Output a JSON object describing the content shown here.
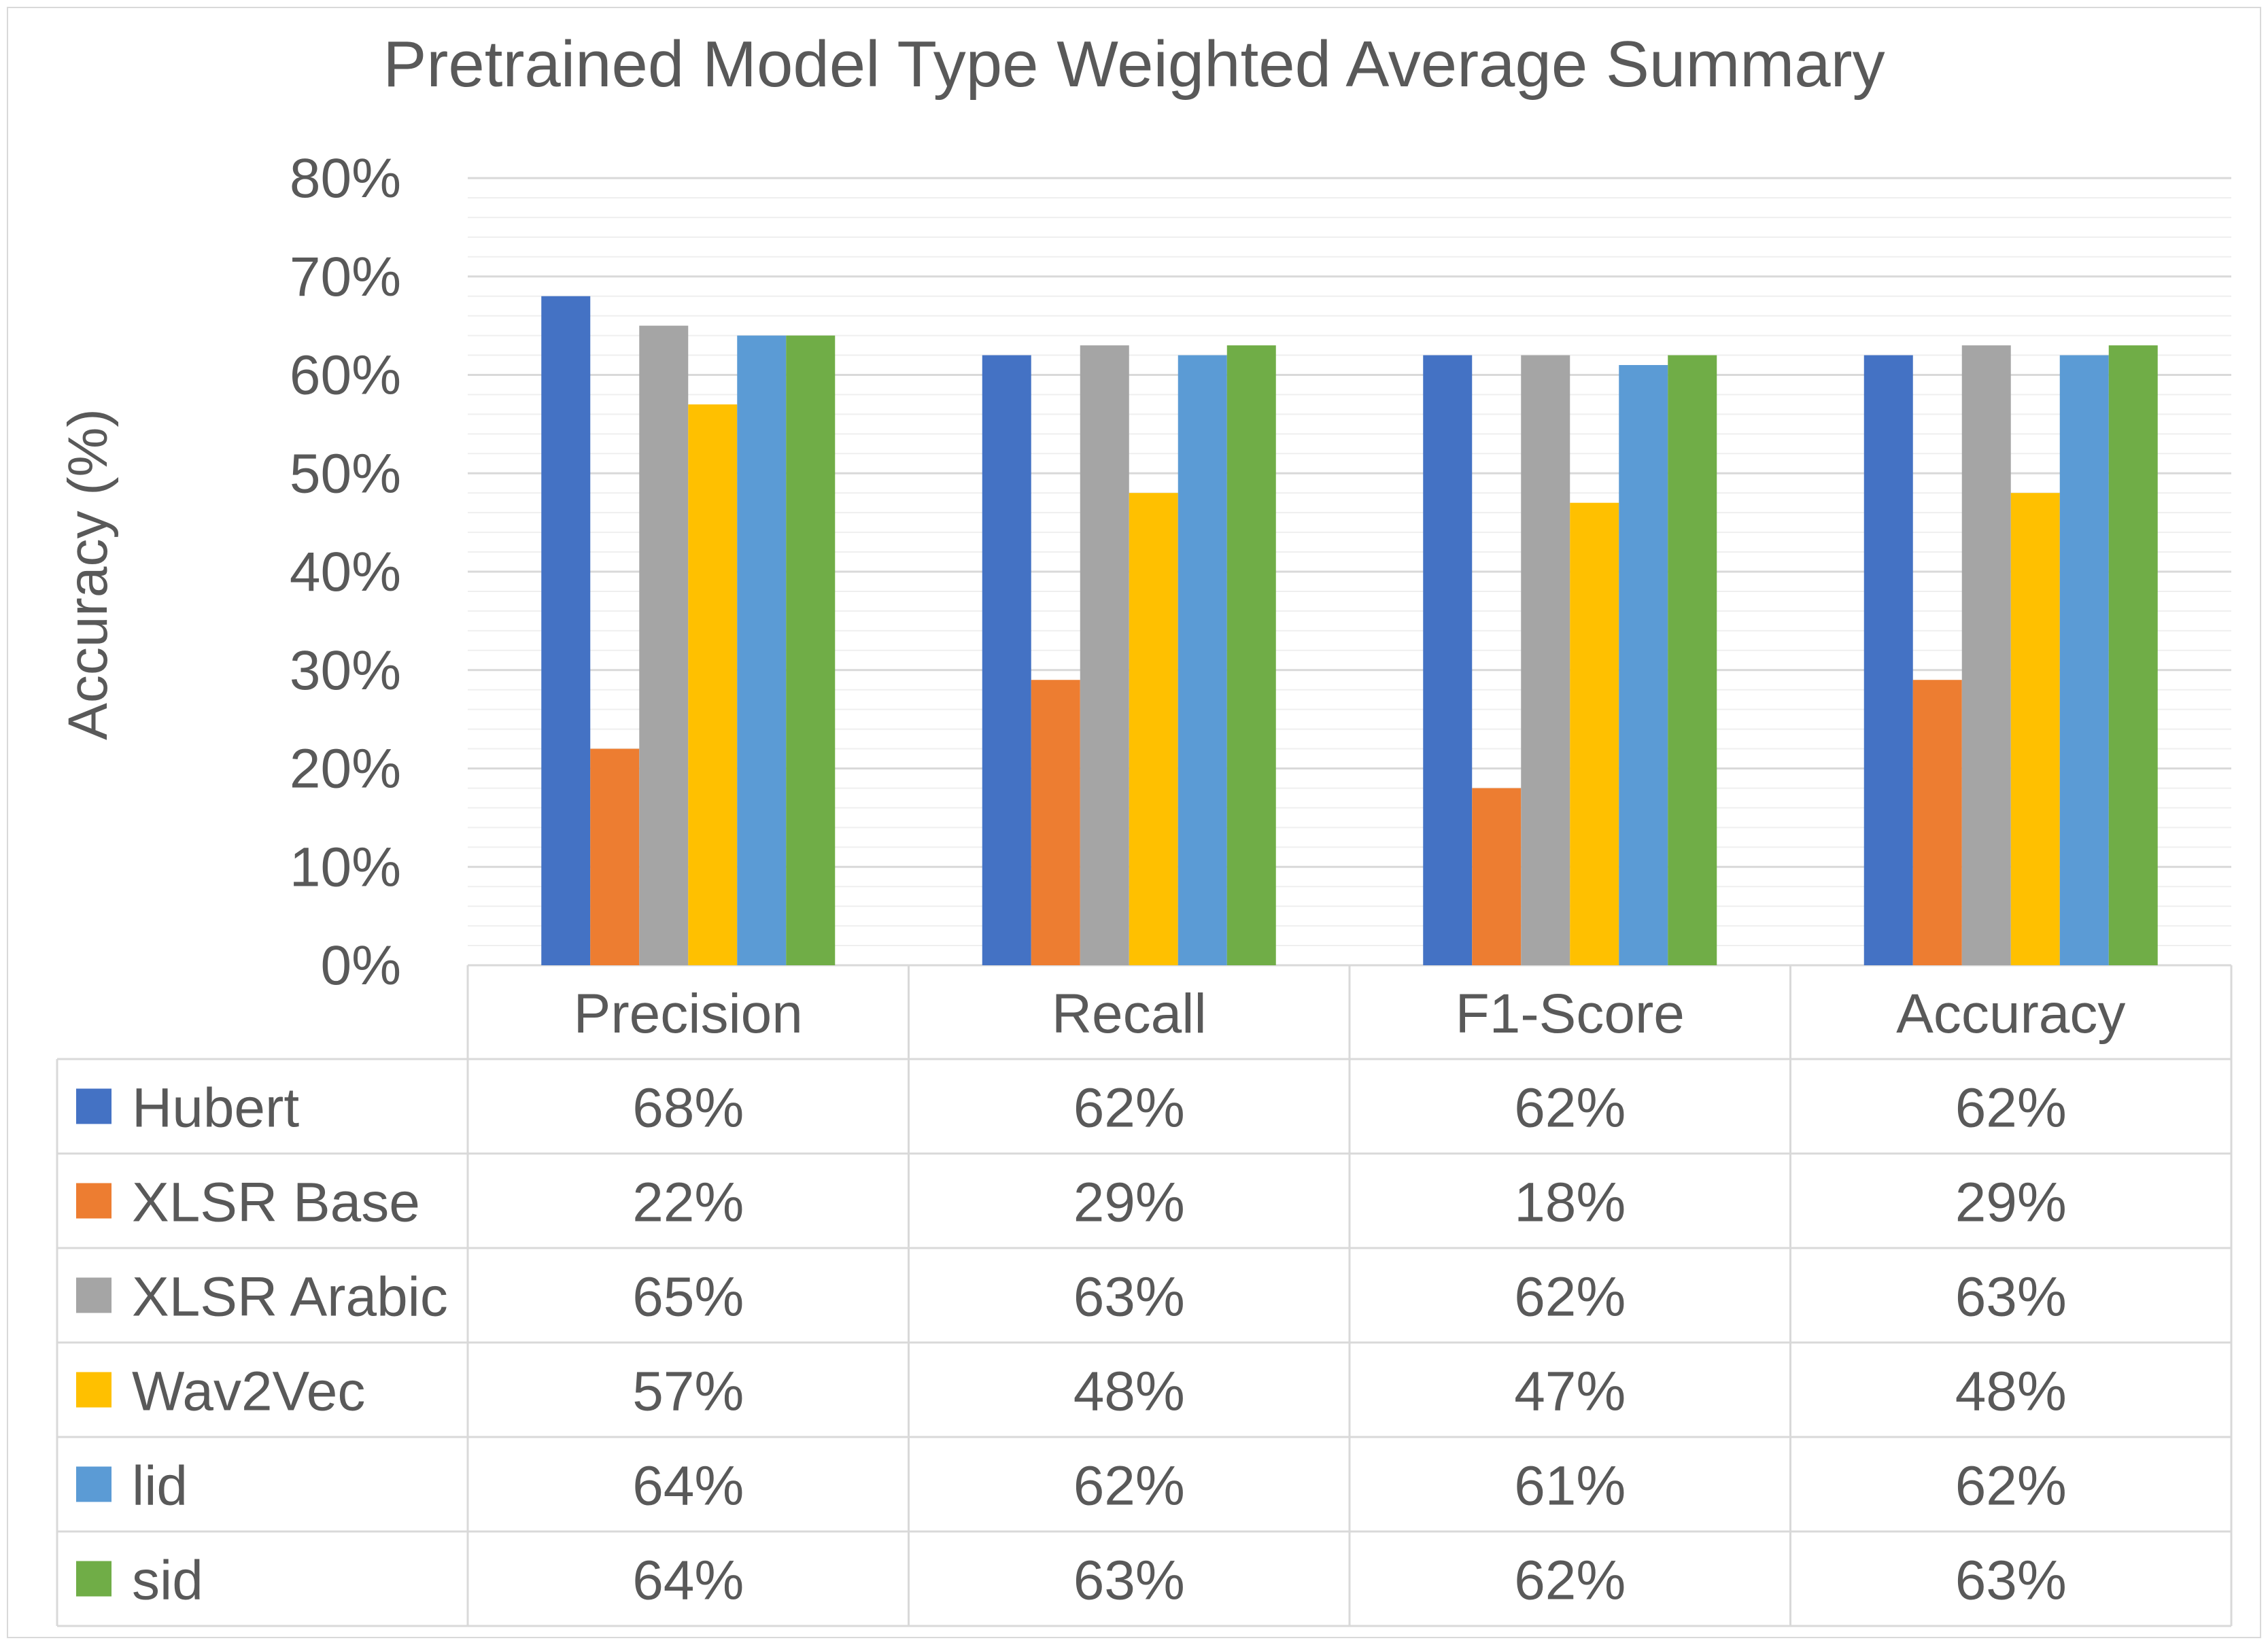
{
  "chart_data": {
    "type": "bar",
    "title": "Pretrained Model Type Weighted Average Summary",
    "ylabel": "Accuracy (%)",
    "xlabel": "",
    "ylim": [
      0,
      80
    ],
    "yticks": [
      "0%",
      "10%",
      "20%",
      "30%",
      "40%",
      "50%",
      "60%",
      "70%",
      "80%"
    ],
    "categories": [
      "Precision",
      "Recall",
      "F1-Score",
      "Accuracy"
    ],
    "grid": true,
    "legend": "data-table-left",
    "series": [
      {
        "name": "Hubert",
        "color": "#4472c4",
        "values": [
          68,
          62,
          62,
          62
        ],
        "labels": [
          "68%",
          "62%",
          "62%",
          "62%"
        ]
      },
      {
        "name": "XLSR Base",
        "color": "#ed7d31",
        "values": [
          22,
          29,
          18,
          29
        ],
        "labels": [
          "22%",
          "29%",
          "18%",
          "29%"
        ]
      },
      {
        "name": "XLSR Arabic",
        "color": "#a5a5a5",
        "values": [
          65,
          63,
          62,
          63
        ],
        "labels": [
          "65%",
          "63%",
          "62%",
          "63%"
        ]
      },
      {
        "name": "Wav2Vec",
        "color": "#ffc000",
        "values": [
          57,
          48,
          47,
          48
        ],
        "labels": [
          "57%",
          "48%",
          "47%",
          "48%"
        ]
      },
      {
        "name": "lid",
        "color": "#5b9bd5",
        "values": [
          64,
          62,
          61,
          62
        ],
        "labels": [
          "64%",
          "62%",
          "61%",
          "62%"
        ]
      },
      {
        "name": "sid",
        "color": "#70ad47",
        "values": [
          64,
          63,
          62,
          63
        ],
        "labels": [
          "64%",
          "63%",
          "62%",
          "63%"
        ]
      }
    ]
  }
}
